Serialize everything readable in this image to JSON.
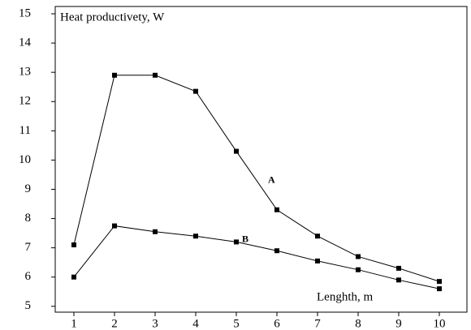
{
  "chart_data": {
    "type": "line",
    "x_label": "Lenghth, m",
    "y_label": "Heat productivety, W",
    "x": [
      1,
      2,
      3,
      4,
      5,
      6,
      7,
      8,
      9,
      10
    ],
    "series": [
      {
        "name": "A",
        "color": "#000000",
        "values": [
          7.1,
          12.9,
          12.9,
          12.35,
          10.3,
          8.3,
          7.4,
          6.7,
          6.3,
          5.85
        ]
      },
      {
        "name": "B",
        "color": "#000000",
        "values": [
          6.0,
          7.75,
          7.55,
          7.4,
          7.2,
          6.9,
          6.55,
          6.25,
          5.9,
          5.6
        ]
      }
    ],
    "xlim": [
      0.54,
      10.68
    ],
    "ylim": [
      4.8,
      15.25
    ],
    "xticks": [
      1,
      2,
      3,
      4,
      5,
      6,
      7,
      8,
      9,
      10
    ],
    "yticks": [
      5,
      6,
      7,
      8,
      9,
      10,
      11,
      12,
      13,
      14,
      15
    ],
    "grid": false
  }
}
